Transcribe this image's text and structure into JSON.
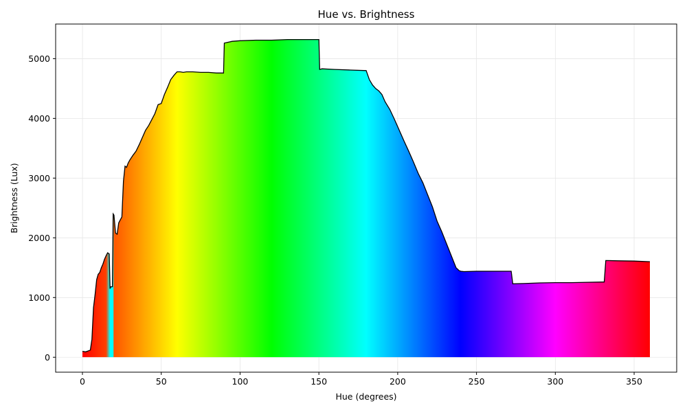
{
  "chart_data": {
    "type": "area",
    "title": "Hue vs. Brightness",
    "xlabel": "Hue (degrees)",
    "ylabel": "Brightness (Lux)",
    "xlim": [
      -17,
      377
    ],
    "ylim": [
      -250,
      5580
    ],
    "x_ticks": [
      0,
      50,
      100,
      150,
      200,
      250,
      300,
      350
    ],
    "y_ticks": [
      0,
      1000,
      2000,
      3000,
      4000,
      5000
    ],
    "grid": true,
    "fill": "hue-gradient",
    "outline_color": "#000000",
    "series": [
      {
        "x": [
          0,
          2,
          4,
          5,
          6,
          7,
          8,
          9,
          10,
          11,
          12,
          13,
          14,
          15,
          16,
          17,
          17.5,
          18,
          19,
          19.5,
          20,
          21,
          22,
          23,
          24,
          25,
          26,
          27,
          28,
          29,
          30,
          32,
          34,
          36,
          38,
          40,
          42,
          44,
          46,
          48,
          50,
          52,
          54,
          56,
          58,
          60,
          62,
          64,
          66,
          70,
          75,
          80,
          85,
          88,
          89.5,
          90,
          95,
          100,
          110,
          120,
          130,
          140,
          150,
          150.5,
          152,
          160,
          170,
          180,
          182,
          184,
          186,
          188,
          190,
          192,
          195,
          198,
          201,
          204,
          207,
          210,
          213,
          216,
          219,
          222,
          225,
          228,
          231,
          234,
          237,
          239,
          240,
          242,
          250,
          260,
          270,
          272,
          273,
          280,
          290,
          300,
          310,
          320,
          330,
          331,
          332,
          340,
          350,
          360
        ],
        "y": [
          100,
          90,
          110,
          120,
          300,
          830,
          1050,
          1300,
          1390,
          1420,
          1500,
          1560,
          1640,
          1700,
          1750,
          1730,
          1150,
          1180,
          1180,
          2400,
          2380,
          2080,
          2060,
          2250,
          2300,
          2350,
          2950,
          3200,
          3180,
          3250,
          3300,
          3380,
          3450,
          3560,
          3680,
          3800,
          3880,
          3980,
          4080,
          4230,
          4250,
          4400,
          4520,
          4650,
          4720,
          4780,
          4780,
          4770,
          4780,
          4780,
          4770,
          4770,
          4760,
          4760,
          4760,
          5260,
          5290,
          5300,
          5310,
          5310,
          5320,
          5320,
          5320,
          4820,
          4830,
          4820,
          4810,
          4800,
          4650,
          4560,
          4500,
          4460,
          4400,
          4280,
          4150,
          3980,
          3800,
          3620,
          3450,
          3270,
          3080,
          2920,
          2720,
          2520,
          2280,
          2100,
          1900,
          1700,
          1500,
          1450,
          1440,
          1435,
          1440,
          1440,
          1440,
          1440,
          1230,
          1235,
          1245,
          1250,
          1250,
          1255,
          1260,
          1260,
          1620,
          1615,
          1610,
          1600
        ]
      }
    ]
  }
}
